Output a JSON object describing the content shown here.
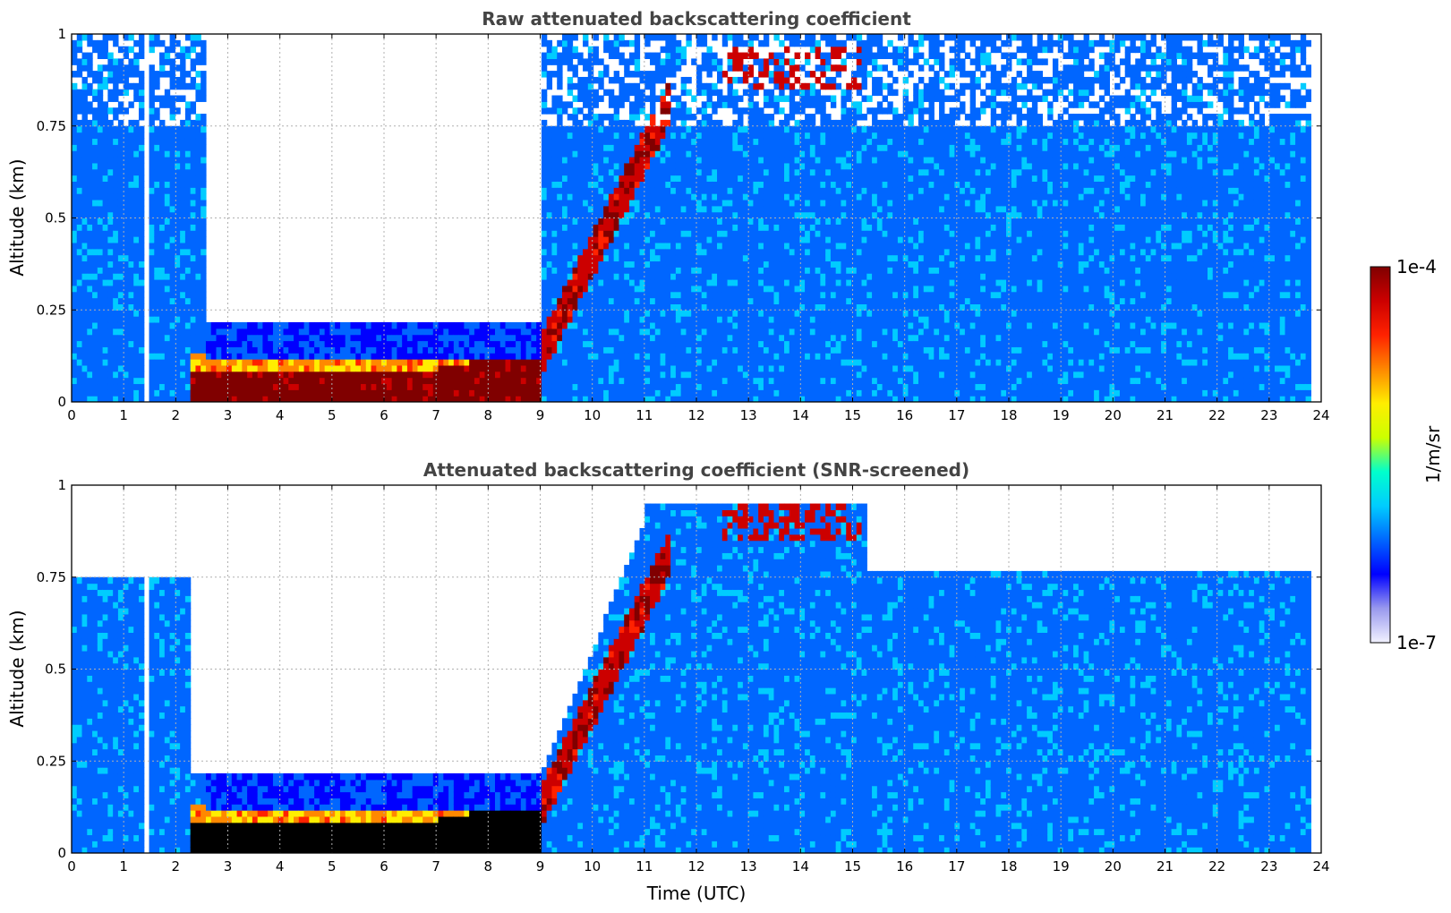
{
  "chart_data": [
    {
      "type": "heatmap",
      "title": "Raw attenuated backscattering coefficient",
      "xlabel": "",
      "ylabel": "Altitude (km)",
      "xlim": [
        0,
        24
      ],
      "ylim": [
        0,
        1
      ],
      "x_ticks": [
        0,
        1,
        2,
        3,
        4,
        5,
        6,
        7,
        8,
        9,
        10,
        11,
        12,
        13,
        14,
        15,
        16,
        17,
        18,
        19,
        20,
        21,
        22,
        23,
        24
      ],
      "y_ticks": [
        0,
        0.25,
        0.5,
        0.75,
        1
      ],
      "y_tick_labels": [
        "0",
        "0.25",
        "0.5",
        "0.75",
        "1"
      ],
      "grid": true,
      "data_extent_x": [
        0,
        23.8
      ],
      "features": [
        {
          "name": "data gaps",
          "x": [
            1.25,
            1.5
          ]
        },
        {
          "name": "clear region above layer",
          "x": [
            2.6,
            9.0
          ],
          "above_altitude": 0.22
        },
        {
          "name": "high-backscatter layer",
          "x": [
            2.3,
            9.0
          ],
          "altitude": [
            0.0,
            0.1
          ]
        },
        {
          "name": "rising layer",
          "x": [
            9.0,
            11.5
          ],
          "altitude": [
            0.1,
            0.8
          ]
        },
        {
          "name": "high-backscatter patches",
          "x": [
            12.5,
            15.2
          ],
          "altitude": [
            0.85,
            0.97
          ]
        }
      ]
    },
    {
      "type": "heatmap",
      "title": "Attenuated backscattering coefficient (SNR-screened)",
      "xlabel": "Time (UTC)",
      "ylabel": "Altitude (km)",
      "xlim": [
        0,
        24
      ],
      "ylim": [
        0,
        1
      ],
      "x_ticks": [
        0,
        1,
        2,
        3,
        4,
        5,
        6,
        7,
        8,
        9,
        10,
        11,
        12,
        13,
        14,
        15,
        16,
        17,
        18,
        19,
        20,
        21,
        22,
        23,
        24
      ],
      "y_ticks": [
        0,
        0.25,
        0.5,
        0.75,
        1
      ],
      "y_tick_labels": [
        "0",
        "0.25",
        "0.5",
        "0.75",
        "1"
      ],
      "grid": true,
      "data_extent_x": [
        0,
        23.8
      ],
      "features": [
        {
          "name": "screened top",
          "x": [
            0,
            2.3
          ],
          "altitude": 0.75
        },
        {
          "name": "saturated layer",
          "x": [
            2.6,
            9.0
          ],
          "altitude": [
            0.0,
            0.1
          ]
        },
        {
          "name": "screened top",
          "x": [
            15.5,
            23.8
          ],
          "altitude": 0.77
        }
      ]
    }
  ],
  "colorbar": {
    "label": "1/m/sr",
    "max_label": "1e-4",
    "min_label": "1e-7",
    "colormap": [
      "#f2f2ff",
      "#9999ee",
      "#0000ff",
      "#0066ff",
      "#00ccff",
      "#00ffcc",
      "#ccff00",
      "#ffee00",
      "#ff8800",
      "#ff2200",
      "#cc0000",
      "#800000"
    ]
  }
}
